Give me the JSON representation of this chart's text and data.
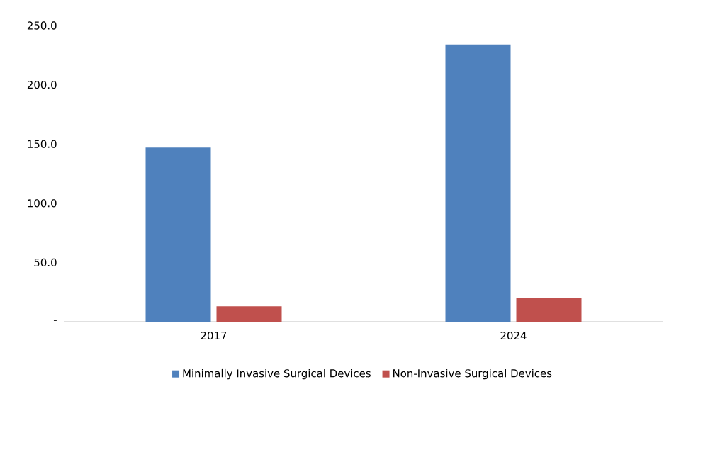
{
  "chart_data": {
    "type": "bar",
    "categories": [
      "2017",
      "2024"
    ],
    "series": [
      {
        "name": "Minimally Invasive Surgical Devices",
        "color": "#4f81bd",
        "values": [
          147,
          234
        ]
      },
      {
        "name": "Non-Invasive Surgical Devices",
        "color": "#c0504d",
        "values": [
          13,
          20
        ]
      }
    ],
    "ylim": [
      0,
      250
    ],
    "yticks": [
      {
        "value": 0,
        "label": "-"
      },
      {
        "value": 50,
        "label": "50.0"
      },
      {
        "value": 100,
        "label": "100.0"
      },
      {
        "value": 150,
        "label": "150.0"
      },
      {
        "value": 200,
        "label": "200.0"
      },
      {
        "value": 250,
        "label": "250.0"
      }
    ],
    "grid": false,
    "legend": "bottom"
  }
}
